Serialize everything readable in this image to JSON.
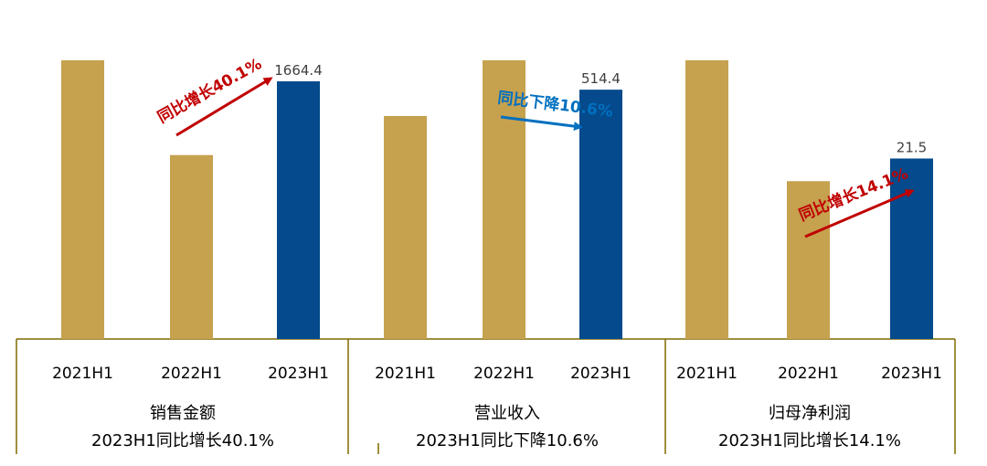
{
  "colors": {
    "bar_prior": "#C6A14E",
    "bar_current": "#044A8C",
    "up": "#C00000",
    "down": "#0070C0",
    "frame": "#7F6A00"
  },
  "chart_data": [
    {
      "type": "bar",
      "categories": [
        "2021H1",
        "2022H1",
        "2023H1"
      ],
      "values": [
        1800,
        1188,
        1664.4
      ],
      "data_labels": [
        "",
        "",
        "1664.4"
      ],
      "group_title": "销售金额",
      "group_subtitle": "2023H1同比增长40.1%",
      "annotation": {
        "text": "同比增长40.1%",
        "direction": "up"
      }
    },
    {
      "type": "bar",
      "categories": [
        "2021H1",
        "2022H1",
        "2023H1"
      ],
      "values": [
        460,
        575,
        514.4
      ],
      "data_labels": [
        "",
        "",
        "514.4"
      ],
      "group_title": "营业收入",
      "group_subtitle": "2023H1同比下降10.6%",
      "annotation": {
        "text": "同比下降10.6%",
        "direction": "down"
      }
    },
    {
      "type": "bar",
      "categories": [
        "2021H1",
        "2022H1",
        "2023H1"
      ],
      "values": [
        33.2,
        18.8,
        21.5
      ],
      "data_labels": [
        "",
        "",
        "21.5"
      ],
      "group_title": "归母净利润",
      "group_subtitle": "2023H1同比增长14.1%",
      "annotation": {
        "text": "同比增长14.1%",
        "direction": "up"
      }
    }
  ]
}
